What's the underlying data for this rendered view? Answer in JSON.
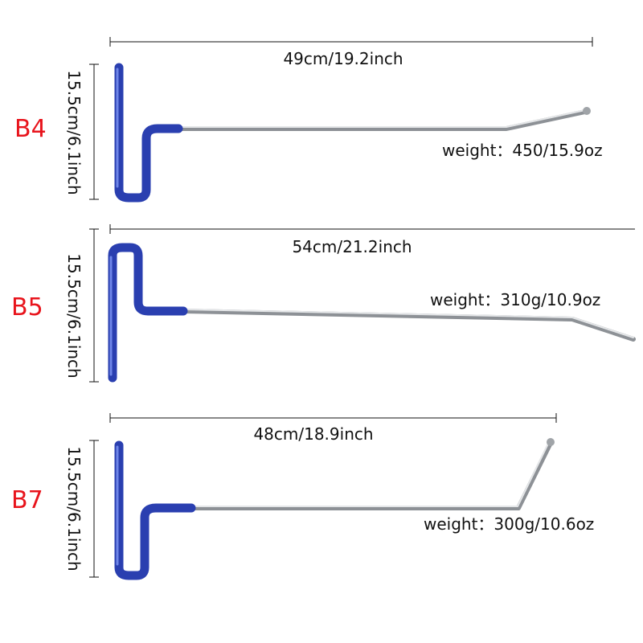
{
  "items": [
    {
      "label": "B4",
      "length": "49cm/19.2inch",
      "height": "15.5cm/6.1inch",
      "weight": "weight：450/15.9oz"
    },
    {
      "label": "B5",
      "length": "54cm/21.2inch",
      "height": "15.5cm/6.1inch",
      "weight": "weight：310g/10.9oz"
    },
    {
      "label": "B7",
      "length": "48cm/18.9inch",
      "height": "15.5cm/6.1inch",
      "weight": "weight：300g/10.6oz"
    }
  ]
}
